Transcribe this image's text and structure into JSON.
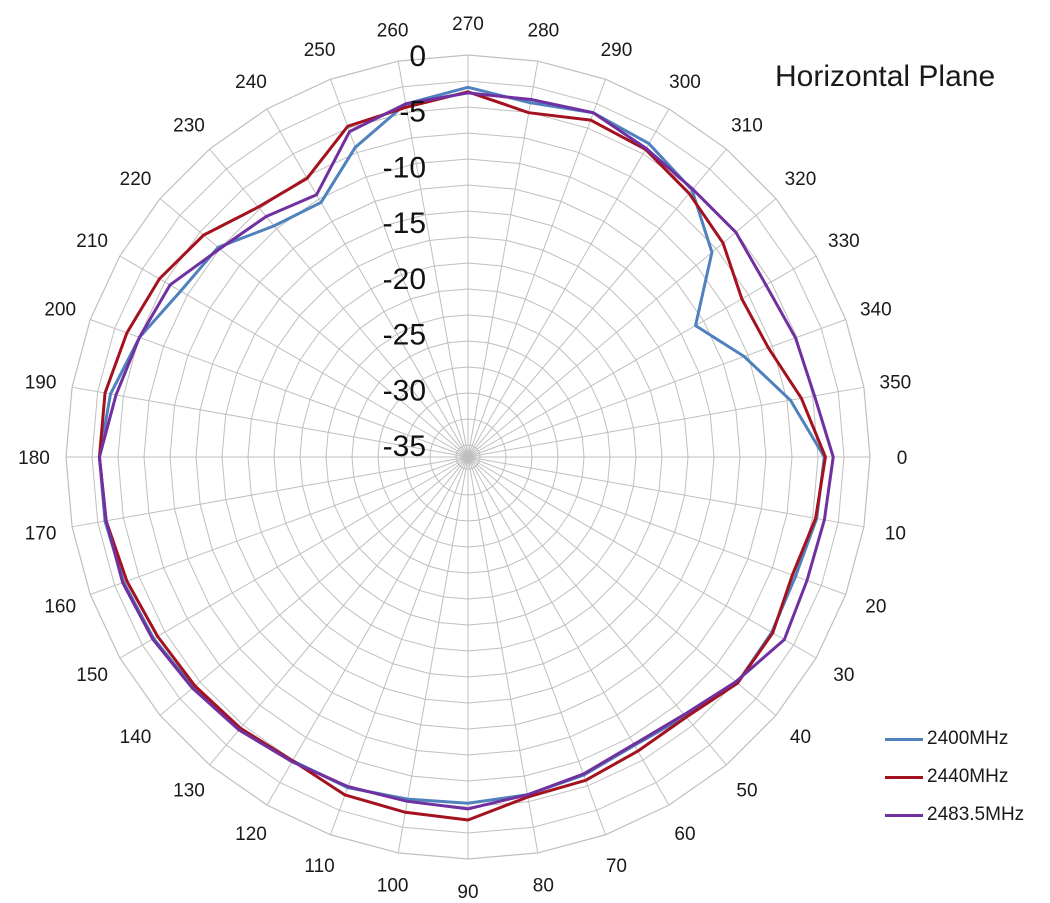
{
  "chart_data": {
    "type": "polar-line",
    "title": "Horizontal Plane",
    "angle_unit": "degrees",
    "angle_zero": "right",
    "angle_direction": "clockwise",
    "angle_tick_labels": [
      "0",
      "10",
      "20",
      "30",
      "40",
      "50",
      "60",
      "70",
      "80",
      "90",
      "100",
      "110",
      "120",
      "130",
      "140",
      "150",
      "160",
      "170",
      "180",
      "190",
      "200",
      "210",
      "220",
      "230",
      "240",
      "250",
      "260",
      "270",
      "280",
      "290",
      "300",
      "310",
      "320",
      "330",
      "340",
      "350"
    ],
    "radial_range": [
      -35,
      0
    ],
    "radial_tick_labels": [
      "0",
      "-5",
      "-10",
      "-15",
      "-20",
      "-25",
      "-30",
      "-35"
    ],
    "radial_tick_values": [
      0,
      -5,
      -10,
      -15,
      -20,
      -25,
      -30,
      -35
    ],
    "grid": true,
    "legend_position": "bottom-right",
    "angles": [
      0,
      10,
      20,
      30,
      40,
      50,
      60,
      70,
      80,
      90,
      100,
      110,
      120,
      130,
      140,
      150,
      160,
      170,
      180,
      190,
      200,
      210,
      220,
      230,
      240,
      250,
      260,
      270,
      280,
      290,
      300,
      310,
      320,
      330,
      340,
      350
    ],
    "series": [
      {
        "name": "2400MHz",
        "color": "#4F81BD",
        "values": [
          -4.1,
          -4.3,
          -4.8,
          -4.6,
          -4.5,
          -5.7,
          -6.2,
          -5.7,
          -5.3,
          -5.0,
          -4.9,
          -4.5,
          -4.6,
          -4.3,
          -3.9,
          -3.5,
          -3.2,
          -3.0,
          -3.0,
          -3.5,
          -4.7,
          -6.3,
          -6.8,
          -9.0,
          -9.7,
          -6.5,
          -3.9,
          -2.9,
          -3.8,
          -3.2,
          -3.6,
          -4.8,
          -7.5,
          -12.5,
          -9.7,
          -6.7
        ]
      },
      {
        "name": "2440MHz",
        "color": "#A5121F",
        "values": [
          -4.0,
          -4.4,
          -5.1,
          -4.5,
          -4.5,
          -5.6,
          -5.6,
          -5.2,
          -5.1,
          -3.5,
          -3.7,
          -3.8,
          -4.6,
          -4.3,
          -4.1,
          -3.9,
          -3.5,
          -3.1,
          -3.0,
          -3.0,
          -3.5,
          -4.1,
          -5.1,
          -6.8,
          -7.2,
          -4.5,
          -4.2,
          -3.3,
          -4.7,
          -3.9,
          -4.2,
          -5.2,
          -6.2,
          -7.7,
          -7.4,
          -5.7
        ]
      },
      {
        "name": "2483.5MHz",
        "color": "#7030A0",
        "values": [
          -3.3,
          -3.6,
          -3.7,
          -3.3,
          -4.7,
          -5.9,
          -6.3,
          -5.8,
          -5.3,
          -4.5,
          -4.7,
          -4.6,
          -4.5,
          -4.1,
          -3.8,
          -3.4,
          -3.1,
          -3.1,
          -3.0,
          -4.0,
          -4.7,
          -5.2,
          -7.0,
          -7.9,
          -8.9,
          -5.0,
          -3.9,
          -3.4,
          -3.5,
          -3.2,
          -4.1,
          -4.7,
          -4.7,
          -5.2,
          -4.8,
          -4.5
        ]
      }
    ]
  }
}
